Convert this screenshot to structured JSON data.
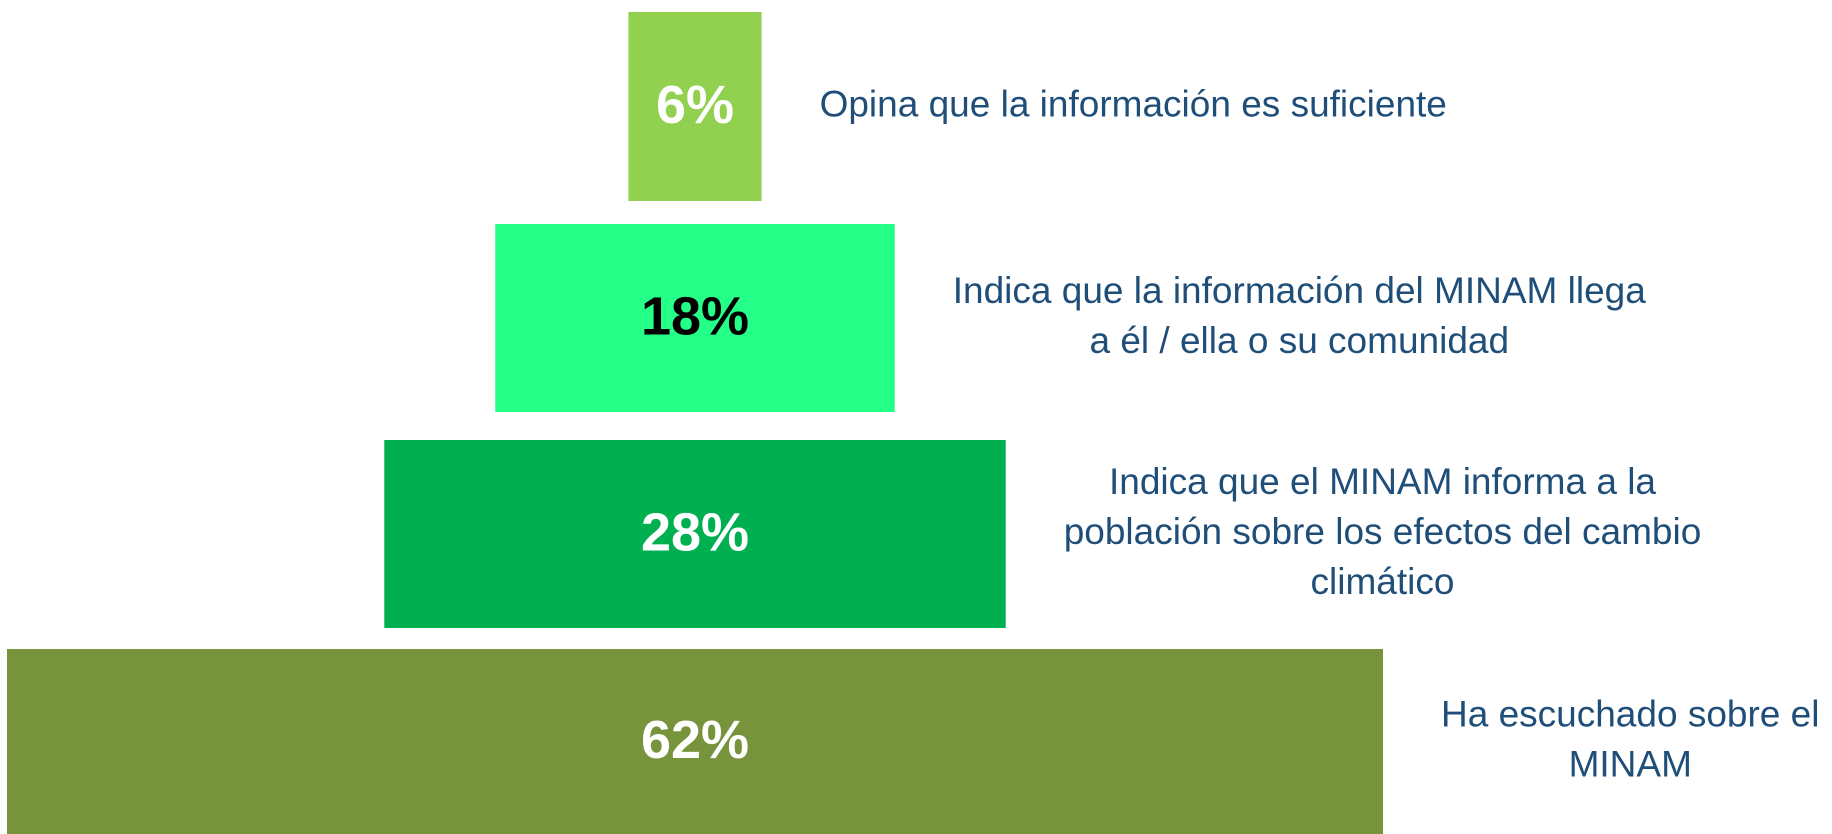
{
  "chart_data": {
    "type": "funnel",
    "categories": [
      [
        "Opina que la información es suficiente"
      ],
      [
        "Indica que la información del MINAM llega",
        "a él / ella o su comunidad"
      ],
      [
        "Indica que el MINAM informa a la",
        "población sobre los efectos del cambio",
        "climático"
      ],
      [
        "Ha escuchado sobre el",
        "MINAM"
      ]
    ],
    "values": [
      6,
      18,
      28,
      62
    ],
    "value_labels": [
      "6%",
      "18%",
      "28%",
      "62%"
    ],
    "colors": [
      "#92d050",
      "#24ff88",
      "#00b050",
      "#77933c"
    ],
    "label_colors": [
      "#ffffff",
      "#000000",
      "#ffffff",
      "#ffffff"
    ]
  }
}
